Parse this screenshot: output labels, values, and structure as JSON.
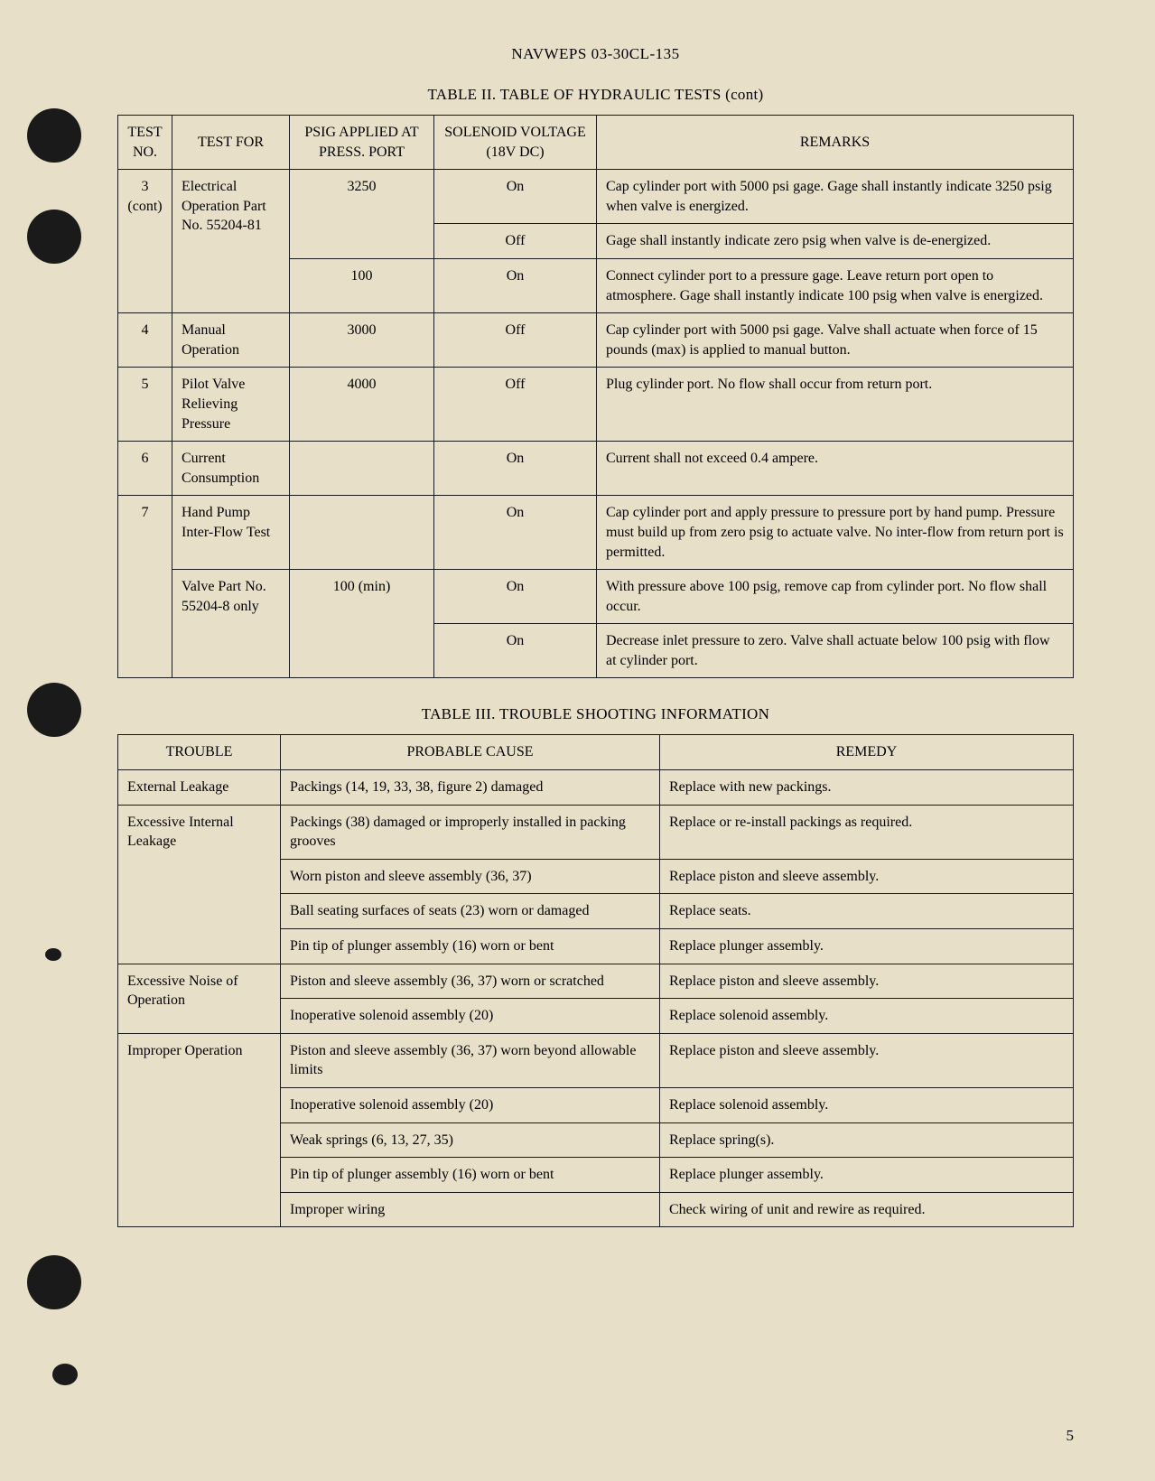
{
  "header": "NAVWEPS 03-30CL-135",
  "table2": {
    "title": "TABLE II.   TABLE OF HYDRAULIC TESTS (cont)",
    "headers": {
      "testno": "TEST NO.",
      "testfor": "TEST FOR",
      "psig": "PSIG APPLIED AT PRESS. PORT",
      "voltage": "SOLENOID VOLTAGE (18V DC)",
      "remarks": "REMARKS"
    },
    "rows": [
      {
        "testno": "3 (cont)",
        "testfor": "Electrical Operation Part No. 55204-81",
        "psig": "3250",
        "voltage": "On",
        "remarks": "Cap cylinder port with 5000 psi gage. Gage shall instantly indicate 3250 psig when valve is energized."
      },
      {
        "voltage": "Off",
        "remarks": "Gage shall instantly indicate zero psig when valve is de-energized."
      },
      {
        "psig": "100",
        "voltage": "On",
        "remarks": "Connect cylinder port to a pressure gage.  Leave return port open to atmosphere.  Gage shall instantly indicate 100 psig when valve is energized."
      },
      {
        "testno": "4",
        "testfor": "Manual Operation",
        "psig": "3000",
        "voltage": "Off",
        "remarks": "Cap cylinder port with 5000 psi gage. Valve shall actuate when force of 15 pounds (max) is applied to manual button."
      },
      {
        "testno": "5",
        "testfor": "Pilot Valve Relieving Pressure",
        "psig": "4000",
        "voltage": "Off",
        "remarks": "Plug cylinder port.  No flow shall occur from return port."
      },
      {
        "testno": "6",
        "testfor": "Current Consumption",
        "psig": "",
        "voltage": "On",
        "remarks": "Current shall not exceed 0.4 ampere."
      },
      {
        "testno": "7",
        "testfor": "Hand Pump Inter-Flow Test",
        "psig": "",
        "voltage": "On",
        "remarks": "Cap cylinder port and apply pressure to pressure port by hand pump.  Pressure must build up from zero psig to actuate valve.  No inter-flow from return port is permitted."
      },
      {
        "testfor": "Valve Part No. 55204-8 only",
        "psig": "100 (min)",
        "voltage": "On",
        "remarks": "With pressure above 100 psig, remove cap from cylinder port.  No flow shall occur."
      },
      {
        "voltage": "On",
        "remarks": "Decrease inlet pressure to zero.  Valve shall actuate below 100 psig with flow at cylinder port."
      }
    ]
  },
  "table3": {
    "title": "TABLE III.   TROUBLE SHOOTING INFORMATION",
    "headers": {
      "trouble": "TROUBLE",
      "cause": "PROBABLE CAUSE",
      "remedy": "REMEDY"
    },
    "rows": [
      {
        "trouble": "External Leakage",
        "cause": "Packings (14, 19, 33, 38, figure 2) damaged",
        "remedy": "Replace with new packings."
      },
      {
        "trouble": "Excessive Internal Leakage",
        "cause": "Packings (38) damaged or improperly installed in packing grooves",
        "remedy": "Replace or re-install packings as required."
      },
      {
        "cause": "Worn piston and sleeve assembly (36, 37)",
        "remedy": "Replace piston and sleeve assembly."
      },
      {
        "cause": "Ball seating surfaces of seats (23) worn or damaged",
        "remedy": "Replace seats."
      },
      {
        "cause": "Pin tip of plunger assembly (16) worn or bent",
        "remedy": "Replace plunger assembly."
      },
      {
        "trouble": "Excessive Noise of Operation",
        "cause": "Piston and sleeve assembly (36, 37) worn or scratched",
        "remedy": "Replace piston and sleeve assembly."
      },
      {
        "cause": "Inoperative solenoid assembly (20)",
        "remedy": "Replace solenoid assembly."
      },
      {
        "trouble": "Improper Operation",
        "cause": "Piston and sleeve assembly (36, 37) worn beyond allowable limits",
        "remedy": "Replace piston and sleeve assembly."
      },
      {
        "cause": "Inoperative solenoid assembly (20)",
        "remedy": "Replace solenoid assembly."
      },
      {
        "cause": "Weak springs (6, 13, 27, 35)",
        "remedy": "Replace spring(s)."
      },
      {
        "cause": "Pin tip of plunger assembly (16) worn or bent",
        "remedy": "Replace plunger assembly."
      },
      {
        "cause": "Improper wiring",
        "remedy": "Check wiring of unit and rewire as required."
      }
    ]
  },
  "pageNumber": "5"
}
